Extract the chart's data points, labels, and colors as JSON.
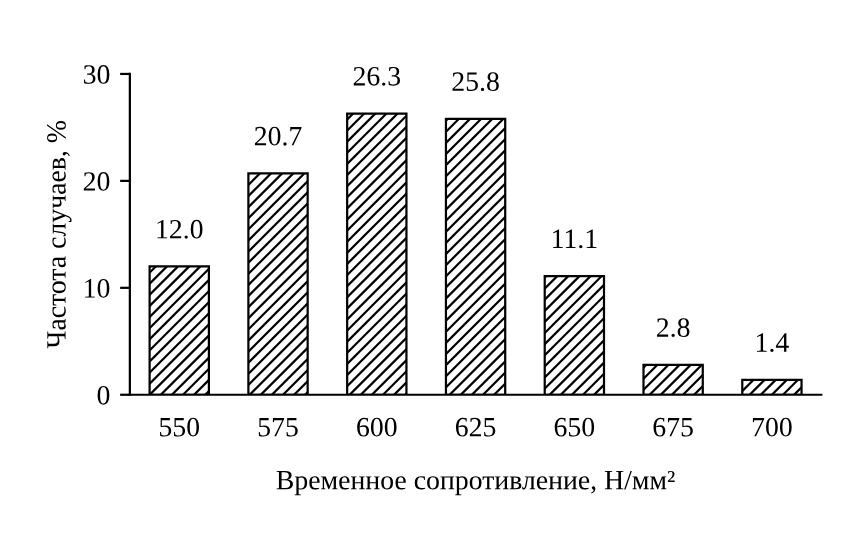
{
  "chart_data": {
    "type": "bar",
    "xlabel": "Временное сопротивление, Н/мм²",
    "ylabel": "Частота случаев, %",
    "categories": [
      "550",
      "575",
      "600",
      "625",
      "650",
      "675",
      "700"
    ],
    "values": [
      12.0,
      20.7,
      26.3,
      25.8,
      11.1,
      2.8,
      1.4
    ],
    "value_labels": [
      "12.0",
      "20.7",
      "26.3",
      "25.8",
      "11.1",
      "2.8",
      "1.4"
    ],
    "color": "#000000",
    "ylim": [
      0,
      30
    ],
    "yticks": [
      0,
      10,
      20,
      30
    ],
    "grid": false,
    "legend": false
  }
}
